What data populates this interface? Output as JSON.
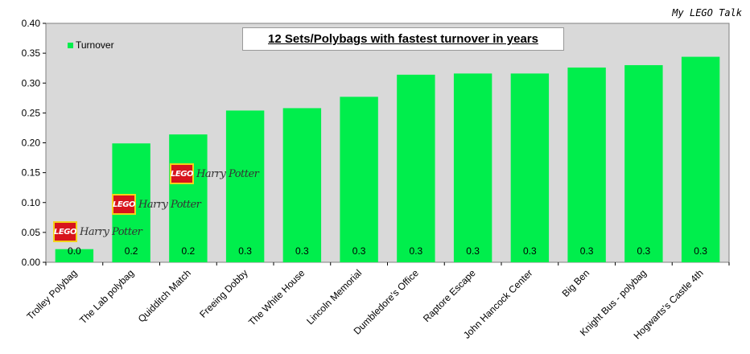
{
  "watermark": "My LEGO Talk",
  "chart_data": {
    "type": "bar",
    "title": "12 Sets/Polybags with fastest turnover in years",
    "categories": [
      "Trolley Polybag",
      "The Lab polybag",
      "Quidditch Match",
      "Freeing Dobby",
      "The White House",
      "Lincoln Memorial",
      "Dumbledore's Office",
      "Raptore Escape",
      "John Hancock Center",
      "Big Ben",
      "Knight Bus - polybag",
      "Hogwarts's Castle 4th"
    ],
    "series": [
      {
        "name": "Turnover",
        "values": [
          0.022,
          0.199,
          0.214,
          0.254,
          0.258,
          0.277,
          0.314,
          0.316,
          0.316,
          0.326,
          0.33,
          0.344
        ],
        "data_labels": [
          "0.0",
          "0.2",
          "0.2",
          "0.3",
          "0.3",
          "0.3",
          "0.3",
          "0.3",
          "0.3",
          "0.3",
          "0.3",
          "0.3"
        ]
      }
    ],
    "ylim": [
      0,
      0.4
    ],
    "yticks": [
      "0.00",
      "0.05",
      "0.10",
      "0.15",
      "0.20",
      "0.25",
      "0.30",
      "0.35",
      "0.40"
    ],
    "grid": false,
    "legend_position": "top-left",
    "colors": {
      "bar": "#00ee4c",
      "plot_background": "#d9d9d9"
    }
  },
  "logos": [
    {
      "lego": "LEGO",
      "brand": "Harry Potter"
    },
    {
      "lego": "LEGO",
      "brand": "Harry Potter"
    },
    {
      "lego": "LEGO",
      "brand": "Harry Potter"
    }
  ]
}
